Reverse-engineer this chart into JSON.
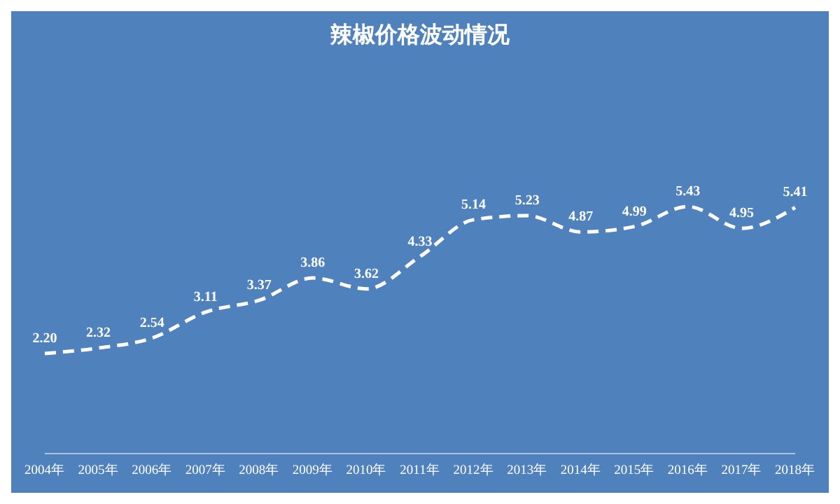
{
  "chart_data": {
    "type": "line",
    "title": "辣椒价格波动情况",
    "categories": [
      "2004年",
      "2005年",
      "2006年",
      "2007年",
      "2008年",
      "2009年",
      "2010年",
      "2011年",
      "2012年",
      "2013年",
      "2014年",
      "2015年",
      "2016年",
      "2017年",
      "2018年"
    ],
    "series": [
      {
        "color": "#ffffff",
        "values": [
          2.2,
          2.32,
          2.54,
          3.11,
          3.37,
          3.86,
          3.62,
          4.33,
          5.14,
          5.23,
          4.87,
          4.99,
          5.43,
          4.95,
          5.41
        ],
        "value_labels": [
          "2.20",
          "2.32",
          "2.54",
          "3.11",
          "3.37",
          "3.86",
          "3.62",
          "4.33",
          "5.14",
          "5.23",
          "4.87",
          "4.99",
          "5.43",
          "4.95",
          "5.41"
        ]
      }
    ],
    "tick_labels": "x",
    "marker": "none",
    "line_style": "dashed",
    "grid": false,
    "legend": false
  }
}
